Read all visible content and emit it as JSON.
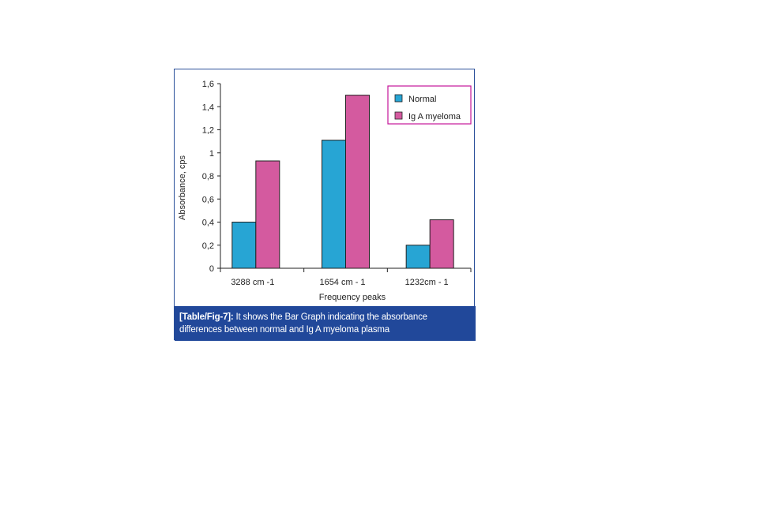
{
  "chart_data": {
    "type": "bar",
    "title": "",
    "xlabel": "Frequency peaks",
    "ylabel": "Absorbance, cps",
    "ylim": [
      0,
      1.6
    ],
    "yticks": [
      "0",
      "0.2",
      "0.4",
      "0.6",
      "0.8",
      "1",
      "1.2",
      "1.4",
      "1.6"
    ],
    "categories": [
      "3288 cm -1",
      "1654 cm - 1",
      "1232cm - 1"
    ],
    "series": [
      {
        "name": "Normal",
        "color": "#27a5d4",
        "values": [
          0.4,
          1.11,
          0.2
        ]
      },
      {
        "name": "Ig A myeloma",
        "color": "#d45a9f",
        "values": [
          0.93,
          1.5,
          0.42
        ]
      }
    ],
    "legend_position": "top-right",
    "legend_border_color": "#c4169a",
    "grid": false
  },
  "caption": {
    "label": "[Table/Fig-7]:",
    "text": " It shows the Bar Graph indicating the absorbance differences between normal and Ig A myeloma plasma"
  },
  "colors": {
    "caption_background": "#21489a",
    "frame_border": "#2a4f9a"
  }
}
